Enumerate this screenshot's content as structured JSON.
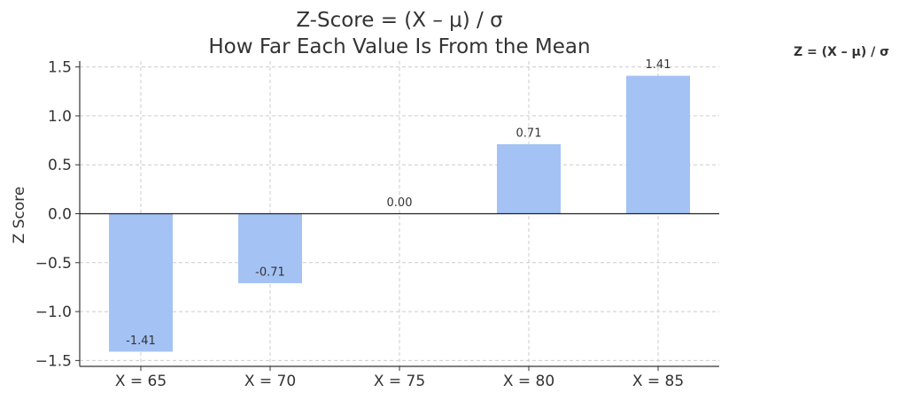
{
  "chart_data": {
    "type": "bar",
    "title_lines": [
      "Z-Score = (X – μ) / σ",
      "How Far Each Value Is From the Mean"
    ],
    "xlabel": "",
    "ylabel": "Z Score",
    "categories": [
      "X = 65",
      "X = 70",
      "X = 75",
      "X = 80",
      "X = 85"
    ],
    "values": [
      -1.41,
      -0.71,
      0.0,
      0.71,
      1.41
    ],
    "value_labels": [
      "-1.41",
      "-0.71",
      "0.00",
      "0.71",
      "1.41"
    ],
    "ylim": [
      -1.56,
      1.56
    ],
    "yticks": [
      -1.5,
      -1.0,
      -0.5,
      0.0,
      0.5,
      1.0,
      1.5
    ],
    "ytick_labels": [
      "−1.5",
      "−1.0",
      "−0.5",
      "0.0",
      "0.5",
      "1.0",
      "1.5"
    ],
    "grid": true,
    "zero_line": true,
    "bar_color": "#a4c2f4",
    "annotation": "Z = (X – μ) / σ"
  }
}
